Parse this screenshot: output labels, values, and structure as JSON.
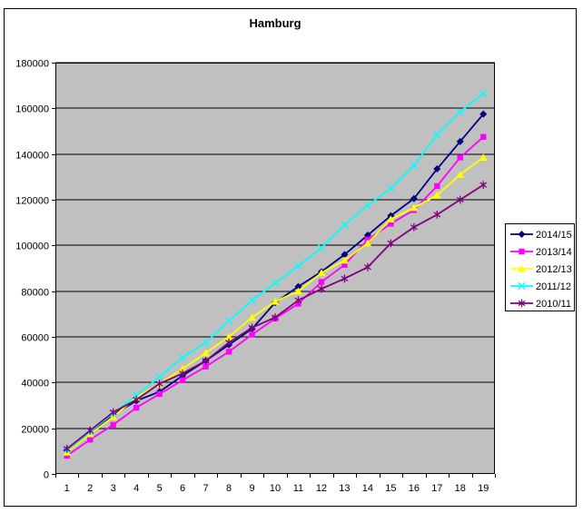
{
  "window": {
    "background": "#FFFFFF",
    "frame_border_color": "#000000"
  },
  "chart_data": {
    "type": "line",
    "title": "Hamburg",
    "xlabel": "",
    "ylabel": "",
    "x": [
      1,
      2,
      3,
      4,
      5,
      6,
      7,
      8,
      9,
      10,
      11,
      12,
      13,
      14,
      15,
      16,
      17,
      18,
      19
    ],
    "ylim": [
      0,
      180000
    ],
    "ytick_interval": 20000,
    "yticks": [
      0,
      20000,
      40000,
      60000,
      80000,
      100000,
      120000,
      140000,
      160000,
      180000
    ],
    "grid": "horizontal",
    "gridline_color": "#000000",
    "plot_background": "#C0C0C0",
    "axis_color": "#000000",
    "tick_label_color": "#000000",
    "legend_position": "right",
    "legend_background": "#FFFFFF",
    "legend_border_color": "#000000",
    "series": [
      {
        "name": "2014/15",
        "color": "#000080",
        "marker": "diamond",
        "values": [
          10500,
          17500,
          26000,
          32000,
          36000,
          43000,
          49500,
          56500,
          63500,
          75000,
          82000,
          88500,
          96000,
          104500,
          113000,
          120500,
          133500,
          145500,
          157500
        ]
      },
      {
        "name": "2013/14",
        "color": "#FF00FF",
        "marker": "square",
        "values": [
          8000,
          15000,
          21500,
          29000,
          35000,
          41000,
          47000,
          53500,
          61000,
          68000,
          74500,
          84000,
          91500,
          102500,
          109500,
          115500,
          126000,
          138500,
          147500
        ]
      },
      {
        "name": "2012/13",
        "color": "#FFFF00",
        "marker": "triangle",
        "values": [
          9500,
          17500,
          25000,
          33500,
          39500,
          46000,
          53000,
          60000,
          68500,
          75500,
          80000,
          88000,
          93500,
          101000,
          111500,
          116500,
          122000,
          131000,
          138500
        ]
      },
      {
        "name": "2011/12",
        "color": "#00FFFF",
        "marker": "x",
        "values": [
          10500,
          18500,
          26500,
          34500,
          42500,
          51000,
          57500,
          67000,
          76000,
          83500,
          91000,
          99000,
          109000,
          117500,
          125000,
          135000,
          148500,
          158500,
          166500
        ]
      },
      {
        "name": "2010/11",
        "color": "#800080",
        "marker": "asterisk",
        "values": [
          11000,
          19000,
          27000,
          32500,
          39500,
          44000,
          49500,
          57500,
          64000,
          68500,
          76000,
          81000,
          85500,
          90500,
          101000,
          108000,
          113500,
          120000,
          126500
        ]
      }
    ]
  }
}
